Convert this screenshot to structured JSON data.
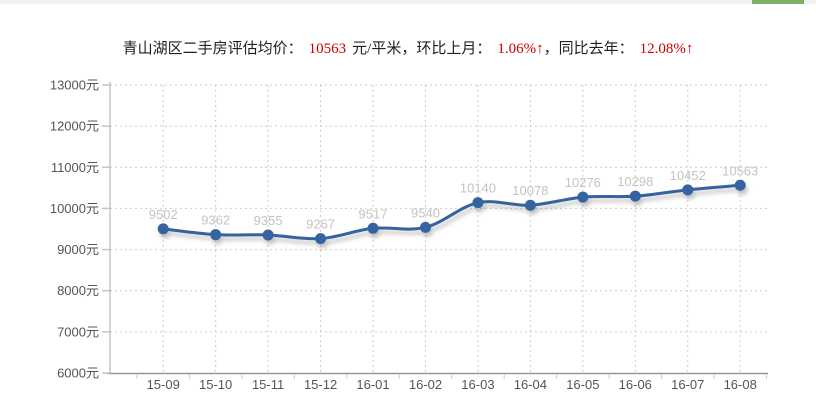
{
  "top_bar": {
    "track_color": "#f2f2f2",
    "thumb_color": "#7caf66"
  },
  "title": {
    "part1": "青山湖区二手房评估均价：",
    "value": "10563",
    "part2": "元/平米，环比上月：",
    "mom": "1.06%↑",
    "part3": "，同比去年：",
    "yoy": "12.08%↑"
  },
  "chart_data": {
    "type": "line",
    "categories": [
      "15-09",
      "15-10",
      "15-11",
      "15-12",
      "16-01",
      "16-02",
      "16-03",
      "16-04",
      "16-05",
      "16-06",
      "16-07",
      "16-08"
    ],
    "values": [
      9502,
      9362,
      9355,
      9267,
      9517,
      9540,
      10140,
      10078,
      10276,
      10298,
      10452,
      10563
    ],
    "xlabel": "",
    "ylabel": "",
    "ylim": [
      6000,
      13000
    ],
    "y_tick_step": 1000,
    "y_tick_suffix": "元",
    "grid": "dotted",
    "legend": "none",
    "colors": {
      "line": "#35639f",
      "point": "#35639f",
      "point_label": "#c3c3c3",
      "axis_line": "#999999",
      "y_axis_line": "#a9a9a9",
      "grid_line": "#cccccc",
      "tick_label": "#555555",
      "y_tick_mark": "#b6c8d8"
    }
  }
}
